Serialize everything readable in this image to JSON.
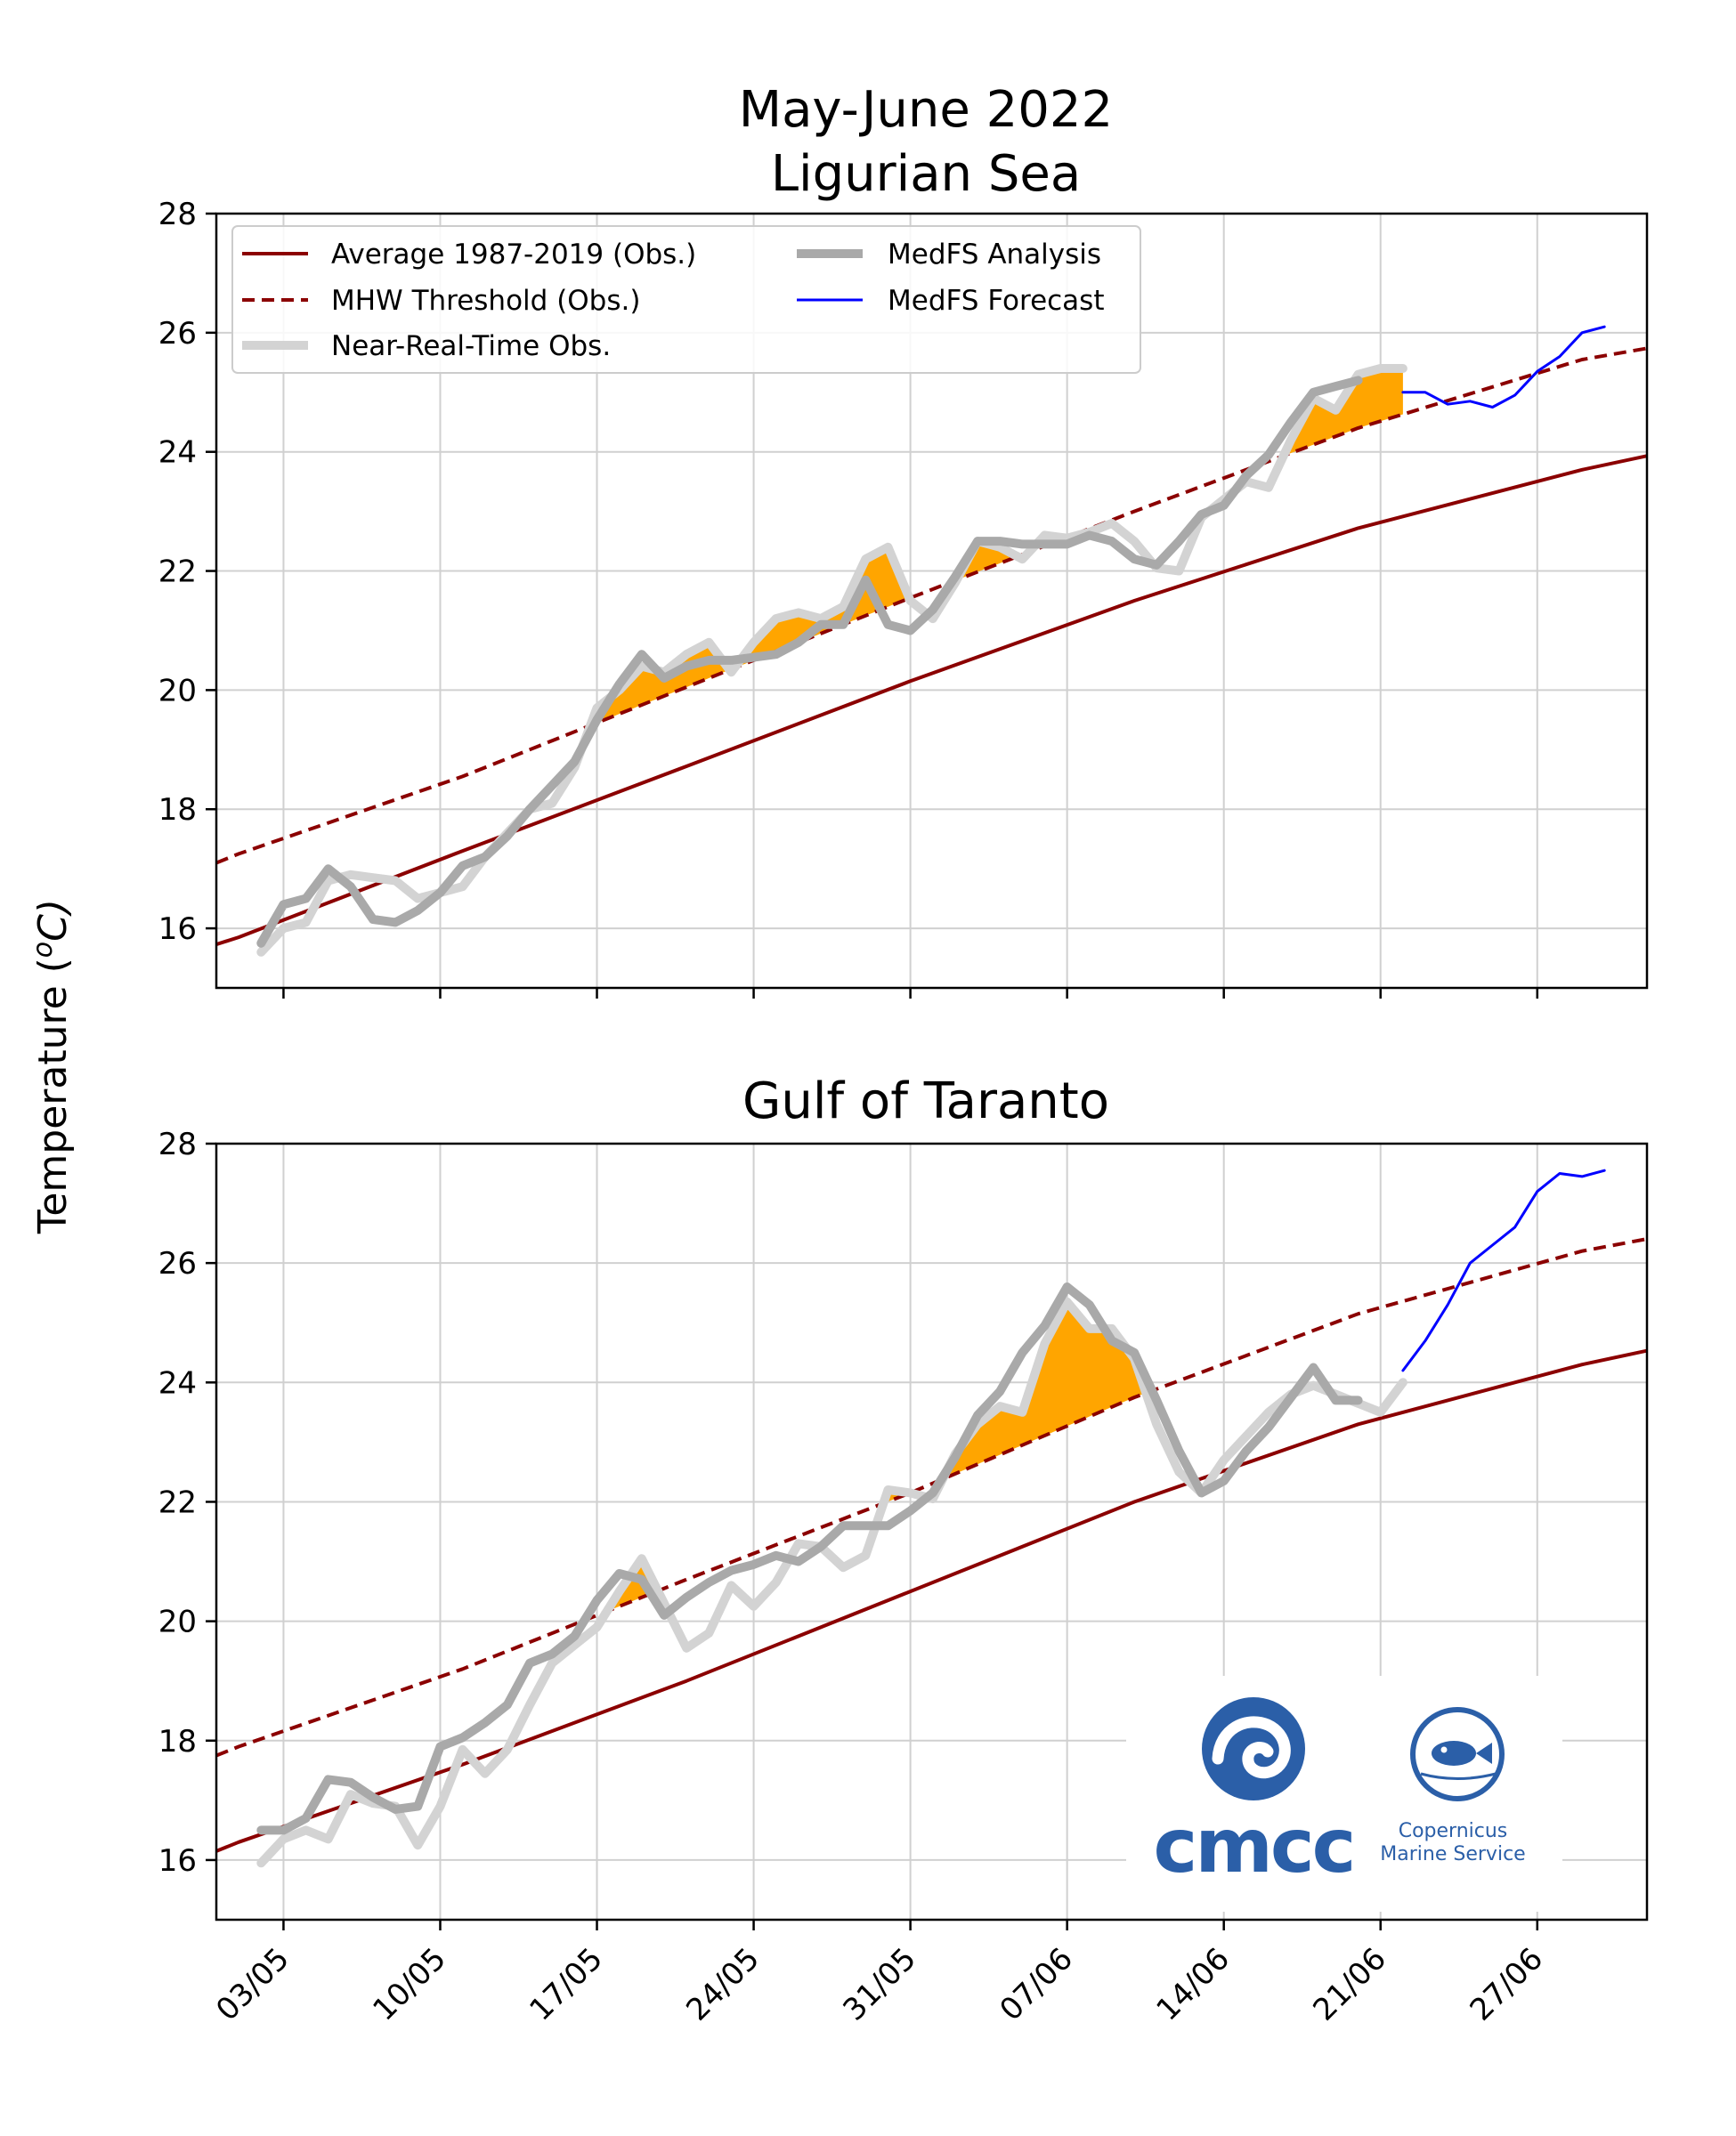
{
  "figure": {
    "title_line1": "May-June 2022",
    "title_line2": "Ligurian Sea",
    "ylabel": "Temperature (",
    "ylabel_sup": "o",
    "ylabel_unit": "C)",
    "logos": {
      "cmcc": "cmcc",
      "copernicus_line1": "Copernicus",
      "copernicus_line2": "Marine Service"
    },
    "colors": {
      "average": "#8b0000",
      "threshold": "#8b0000",
      "obs": "#d3d3d3",
      "analysis": "#a9a9a9",
      "forecast": "#0000ff",
      "mhw_fill": "#ffa500"
    }
  },
  "chart_data": [
    {
      "type": "line",
      "title": "Ligurian Sea",
      "x_tick_labels": [
        "03/05",
        "10/05",
        "17/05",
        "24/05",
        "31/05",
        "07/06",
        "14/06",
        "21/06",
        "27/06"
      ],
      "ylim": [
        15,
        28
      ],
      "yticks": [
        16,
        18,
        20,
        22,
        24,
        26,
        28
      ],
      "grid": true,
      "legend_position": "top-left",
      "legend": [
        "Average 1987-2019 (Obs.)",
        "MHW Threshold (Obs.)",
        "Near-Real-Time Obs.",
        "MedFS Analysis",
        "MedFS Forecast"
      ],
      "x_unit": "day index from 30/04/2022 (0 = 30/04)",
      "series": [
        {
          "name": "Average 1987-2019 (Obs.)",
          "style": "solid",
          "x": [
            -1,
            0,
            10,
            20,
            30,
            40,
            50,
            60,
            70
          ],
          "values": [
            15.73,
            15.85,
            17.3,
            18.72,
            20.15,
            21.5,
            22.72,
            23.7,
            24.5
          ]
        },
        {
          "name": "MHW Threshold (Obs.)",
          "style": "dashed",
          "x": [
            -1,
            0,
            10,
            20,
            30,
            40,
            50,
            60,
            70
          ],
          "values": [
            17.1,
            17.25,
            18.55,
            20.05,
            21.55,
            23.0,
            24.4,
            25.55,
            26.2
          ]
        },
        {
          "name": "Near-Real-Time Obs.",
          "x": [
            1,
            2,
            3,
            4,
            5,
            6,
            7,
            8,
            9,
            10,
            11,
            12,
            13,
            14,
            15,
            16,
            17,
            18,
            19,
            20,
            21,
            22,
            23,
            24,
            25,
            26,
            27,
            28,
            29,
            30,
            31,
            32,
            33,
            34,
            35,
            36,
            37,
            38,
            39,
            40,
            41,
            42,
            43,
            44,
            45,
            46,
            47,
            48,
            49,
            50,
            51,
            52
          ],
          "values": [
            15.6,
            16.0,
            16.1,
            16.8,
            16.9,
            16.85,
            16.8,
            16.5,
            16.6,
            16.7,
            17.2,
            17.6,
            18.0,
            18.1,
            18.7,
            19.7,
            20.0,
            20.4,
            20.3,
            20.6,
            20.8,
            20.3,
            20.8,
            21.2,
            21.3,
            21.2,
            21.4,
            22.2,
            22.4,
            21.5,
            21.2,
            21.8,
            22.5,
            22.4,
            22.2,
            22.6,
            22.55,
            22.65,
            22.8,
            22.5,
            22.05,
            22.0,
            22.9,
            23.2,
            23.5,
            23.4,
            24.2,
            24.9,
            24.7,
            25.3,
            25.4,
            25.4
          ]
        },
        {
          "name": "MedFS Analysis",
          "x": [
            1,
            2,
            3,
            4,
            5,
            6,
            7,
            8,
            9,
            10,
            11,
            12,
            13,
            14,
            15,
            16,
            17,
            18,
            19,
            20,
            21,
            22,
            23,
            24,
            25,
            26,
            27,
            28,
            29,
            30,
            31,
            32,
            33,
            34,
            35,
            36,
            37,
            38,
            39,
            40,
            41,
            42,
            43,
            44,
            45,
            46,
            47,
            48,
            49,
            50
          ],
          "values": [
            15.75,
            16.4,
            16.5,
            17.0,
            16.7,
            16.15,
            16.1,
            16.3,
            16.6,
            17.05,
            17.2,
            17.55,
            18.0,
            18.4,
            18.8,
            19.5,
            20.1,
            20.6,
            20.2,
            20.4,
            20.5,
            20.5,
            20.55,
            20.6,
            20.8,
            21.1,
            21.1,
            21.85,
            21.1,
            21.0,
            21.35,
            21.9,
            22.5,
            22.5,
            22.45,
            22.45,
            22.45,
            22.6,
            22.5,
            22.2,
            22.1,
            22.5,
            22.95,
            23.1,
            23.6,
            23.95,
            24.5,
            25.0,
            25.1,
            25.2
          ]
        },
        {
          "name": "MedFS Forecast",
          "x": [
            52,
            53,
            54,
            55,
            56,
            57,
            58,
            59,
            60,
            61
          ],
          "values": [
            25.0,
            25.0,
            24.8,
            24.85,
            24.75,
            24.95,
            25.35,
            25.6,
            26.0,
            26.1
          ]
        }
      ]
    },
    {
      "type": "line",
      "title": "Gulf of Taranto",
      "x_tick_labels": [
        "03/05",
        "10/05",
        "17/05",
        "24/05",
        "31/05",
        "07/06",
        "14/06",
        "21/06",
        "27/06"
      ],
      "ylim": [
        15,
        28
      ],
      "yticks": [
        16,
        18,
        20,
        22,
        24,
        26,
        28
      ],
      "grid": true,
      "x_unit": "day index from 30/04/2022 (0 = 30/04)",
      "series": [
        {
          "name": "Average 1987-2019 (Obs.)",
          "style": "solid",
          "x": [
            -1,
            0,
            10,
            20,
            30,
            40,
            50,
            60,
            70
          ],
          "values": [
            16.15,
            16.3,
            17.6,
            19.0,
            20.5,
            22.0,
            23.3,
            24.3,
            25.1
          ]
        },
        {
          "name": "MHW Threshold (Obs.)",
          "style": "dashed",
          "x": [
            -1,
            0,
            10,
            20,
            30,
            40,
            50,
            60,
            70
          ],
          "values": [
            17.75,
            17.9,
            19.2,
            20.7,
            22.15,
            23.75,
            25.15,
            26.2,
            26.9
          ]
        },
        {
          "name": "Near-Real-Time Obs.",
          "x": [
            1,
            2,
            3,
            4,
            5,
            6,
            7,
            8,
            9,
            10,
            11,
            12,
            13,
            14,
            15,
            16,
            17,
            18,
            19,
            20,
            21,
            22,
            23,
            24,
            25,
            26,
            27,
            28,
            29,
            30,
            31,
            32,
            33,
            34,
            35,
            36,
            37,
            38,
            39,
            40,
            41,
            42,
            43,
            44,
            45,
            46,
            47,
            48,
            49,
            50,
            51,
            52
          ],
          "values": [
            15.95,
            16.35,
            16.5,
            16.35,
            17.1,
            16.95,
            16.9,
            16.25,
            16.9,
            17.85,
            17.45,
            17.85,
            18.6,
            19.3,
            19.6,
            19.9,
            20.5,
            21.05,
            20.3,
            19.55,
            19.8,
            20.6,
            20.25,
            20.65,
            21.3,
            21.25,
            20.9,
            21.1,
            22.2,
            22.15,
            22.05,
            22.8,
            23.3,
            23.6,
            23.5,
            24.65,
            25.35,
            24.9,
            24.9,
            24.4,
            23.3,
            22.5,
            22.15,
            22.7,
            23.1,
            23.5,
            23.8,
            23.95,
            23.8,
            23.65,
            23.5,
            24.0
          ]
        },
        {
          "name": "MedFS Analysis",
          "x": [
            1,
            2,
            3,
            4,
            5,
            6,
            7,
            8,
            9,
            10,
            11,
            12,
            13,
            14,
            15,
            16,
            17,
            18,
            19,
            20,
            21,
            22,
            23,
            24,
            25,
            26,
            27,
            28,
            29,
            30,
            31,
            32,
            33,
            34,
            35,
            36,
            37,
            38,
            39,
            40,
            41,
            42,
            43,
            44,
            45,
            46,
            47,
            48,
            49,
            50
          ],
          "values": [
            16.5,
            16.5,
            16.7,
            17.35,
            17.3,
            17.05,
            16.85,
            16.9,
            17.9,
            18.05,
            18.3,
            18.6,
            19.3,
            19.45,
            19.75,
            20.35,
            20.8,
            20.7,
            20.1,
            20.4,
            20.65,
            20.85,
            20.95,
            21.1,
            21.0,
            21.25,
            21.6,
            21.6,
            21.6,
            21.85,
            22.15,
            22.75,
            23.45,
            23.85,
            24.5,
            24.95,
            25.6,
            25.3,
            24.7,
            24.5,
            23.7,
            22.85,
            22.15,
            22.35,
            22.85,
            23.25,
            23.75,
            24.25,
            23.7,
            23.7
          ]
        },
        {
          "name": "MedFS Forecast",
          "x": [
            52,
            53,
            54,
            55,
            56,
            57,
            58,
            59,
            60,
            61
          ],
          "values": [
            24.2,
            24.7,
            25.3,
            26.0,
            26.3,
            26.6,
            27.2,
            27.5,
            27.45,
            27.55
          ]
        }
      ]
    }
  ]
}
